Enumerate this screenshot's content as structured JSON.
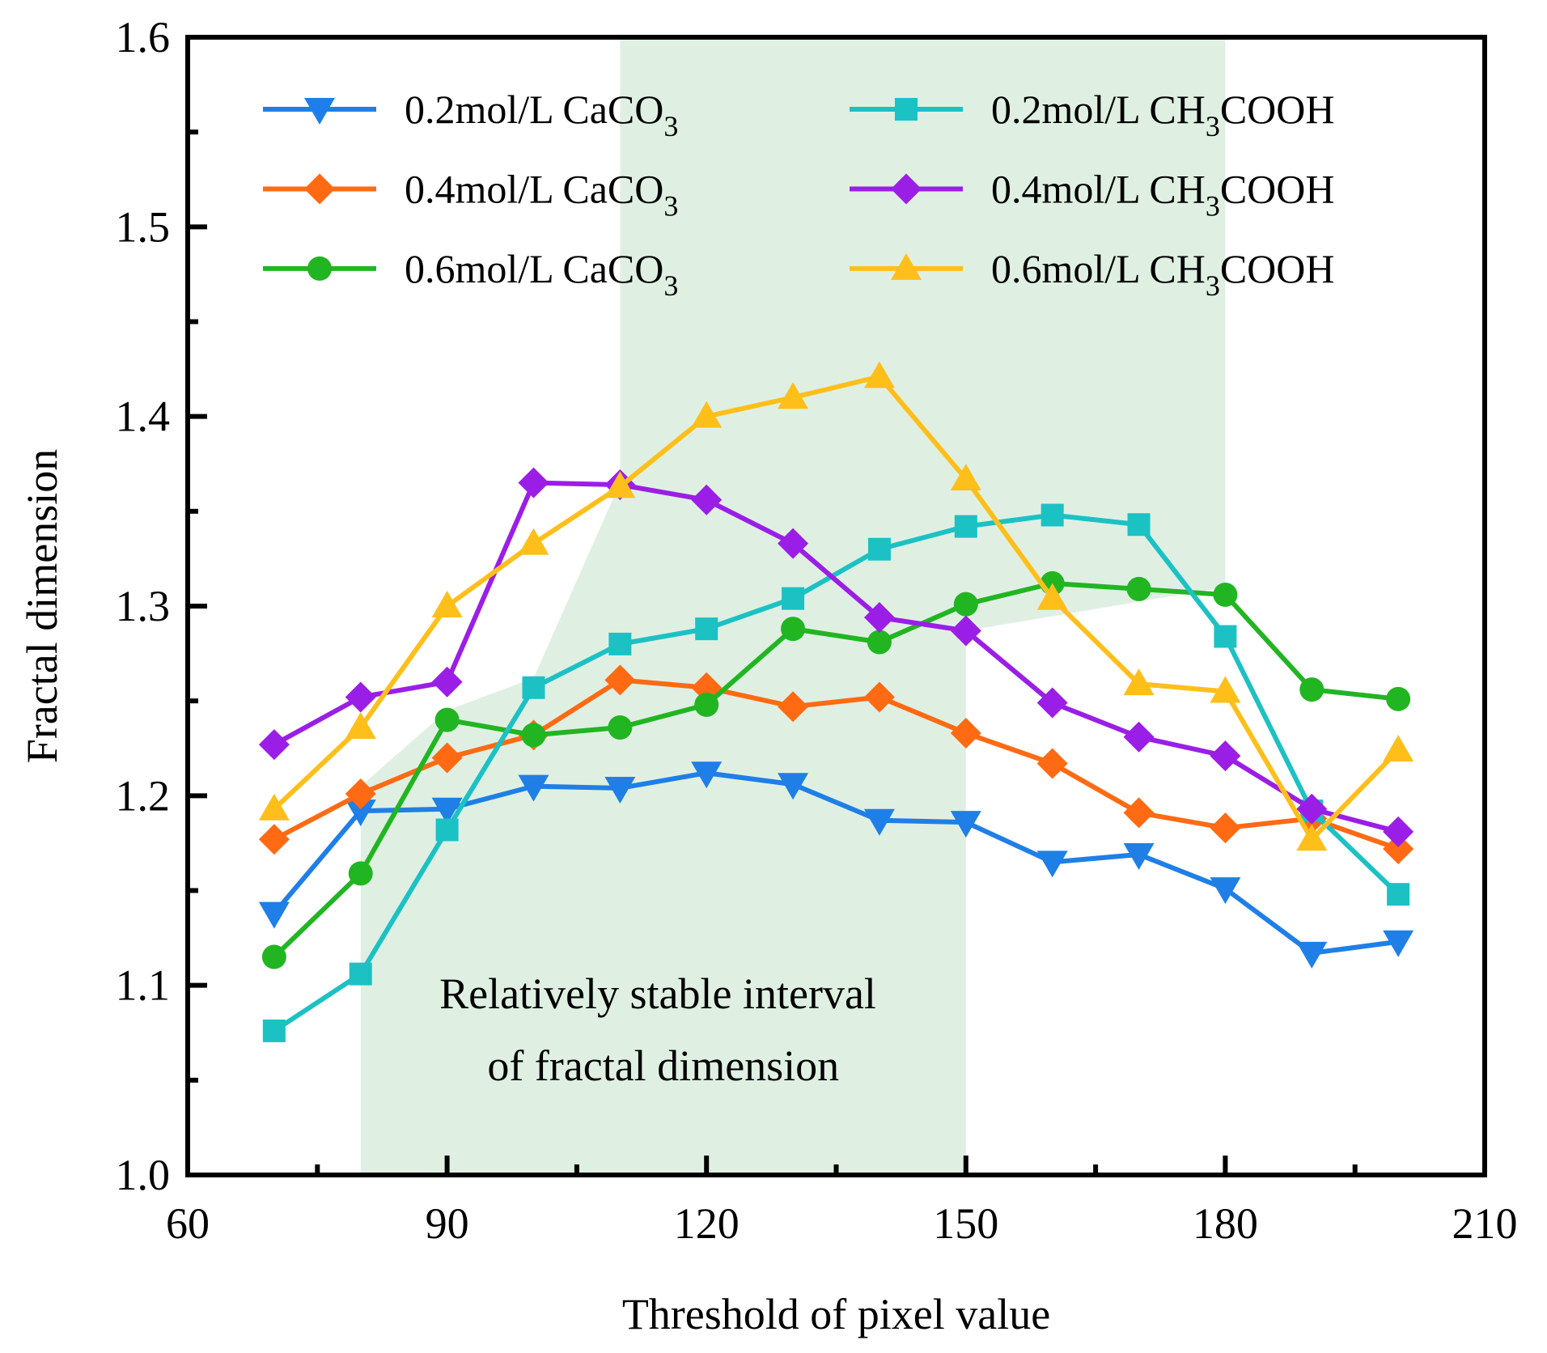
{
  "chart_data": {
    "type": "line",
    "xlabel": "Threshold of pixel value",
    "ylabel": "Fractal dimension",
    "xlim": [
      60,
      210
    ],
    "ylim": [
      1.0,
      1.6
    ],
    "xticks": [
      "60",
      "90",
      "120",
      "150",
      "180",
      "210"
    ],
    "yticks": [
      "1.0",
      "1.1",
      "1.2",
      "1.3",
      "1.4",
      "1.5",
      "1.6"
    ],
    "x": [
      70,
      80,
      90,
      100,
      110,
      120,
      130,
      140,
      150,
      160,
      170,
      180,
      190,
      200
    ],
    "highlight_region": {
      "color": "#dff0e3",
      "annotation_lines": [
        "Relatively stable interval",
        "of fractal dimension"
      ],
      "upper_band_x": [
        110,
        180
      ],
      "lower_band_x": [
        80,
        150
      ]
    },
    "series": [
      {
        "name": "0.2mol/L CaCO",
        "subscript": "3",
        "color": "#1f7fe6",
        "marker": "triangle-down",
        "values": [
          1.138,
          1.192,
          1.193,
          1.205,
          1.204,
          1.212,
          1.206,
          1.187,
          1.186,
          1.165,
          1.169,
          1.151,
          1.117,
          1.123
        ]
      },
      {
        "name": "0.4mol/L CaCO",
        "subscript": "3",
        "color": "#ff6a13",
        "marker": "diamond",
        "values": [
          1.177,
          1.201,
          1.22,
          1.232,
          1.261,
          1.257,
          1.247,
          1.252,
          1.233,
          1.217,
          1.191,
          1.183,
          1.188,
          1.172
        ]
      },
      {
        "name": "0.6mol/L CaCO",
        "subscript": "3",
        "color": "#22b522",
        "marker": "circle",
        "values": [
          1.115,
          1.159,
          1.24,
          1.232,
          1.236,
          1.248,
          1.288,
          1.281,
          1.301,
          1.312,
          1.309,
          1.306,
          1.256,
          1.251
        ]
      },
      {
        "name": "0.2mol/L CH",
        "subscript": "3",
        "name_suffix": "COOH",
        "color": "#1cc1c4",
        "marker": "square",
        "values": [
          1.076,
          1.106,
          1.182,
          1.257,
          1.28,
          1.288,
          1.304,
          1.33,
          1.342,
          1.348,
          1.343,
          1.284,
          1.192,
          1.148
        ]
      },
      {
        "name": "0.4mol/L CH",
        "subscript": "3",
        "name_suffix": "COOH",
        "color": "#9b1ee6",
        "marker": "diamond",
        "values": [
          1.227,
          1.252,
          1.26,
          1.365,
          1.364,
          1.356,
          1.333,
          1.294,
          1.287,
          1.249,
          1.231,
          1.221,
          1.193,
          1.181
        ]
      },
      {
        "name": "0.6mol/L CH",
        "subscript": "3",
        "name_suffix": "COOH",
        "color": "#ffbf1a",
        "marker": "triangle-up",
        "values": [
          1.193,
          1.236,
          1.3,
          1.333,
          1.363,
          1.4,
          1.41,
          1.421,
          1.367,
          1.304,
          1.259,
          1.255,
          1.177,
          1.224
        ]
      }
    ]
  }
}
